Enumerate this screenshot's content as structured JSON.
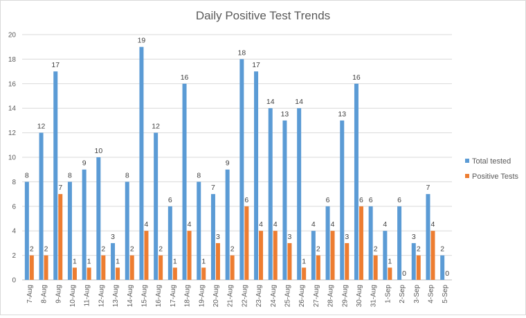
{
  "chart_data": {
    "type": "bar",
    "title": "Daily Positive Test Trends",
    "xlabel": "",
    "ylabel": "",
    "ylim": [
      0,
      20
    ],
    "yticks": [
      0,
      2,
      4,
      6,
      8,
      10,
      12,
      14,
      16,
      18,
      20
    ],
    "grid": true,
    "legend": "right",
    "categories": [
      "7-Aug",
      "8-Aug",
      "9-Aug",
      "10-Aug",
      "11-Aug",
      "12-Aug",
      "13-Aug",
      "14-Aug",
      "15-Aug",
      "16-Aug",
      "17-Aug",
      "18-Aug",
      "19-Aug",
      "20-Aug",
      "21-Aug",
      "22-Aug",
      "23-Aug",
      "24-Aug",
      "25-Aug",
      "26-Aug",
      "27-Aug",
      "28-Aug",
      "29-Aug",
      "30-Aug",
      "31-Aug",
      "1-Sep",
      "2-Sep",
      "3-Sep",
      "4-Sep",
      "5-Sep"
    ],
    "series": [
      {
        "name": "Total tested",
        "color": "#5b9bd5",
        "values": [
          8,
          12,
          17,
          8,
          9,
          10,
          3,
          8,
          19,
          12,
          6,
          16,
          8,
          7,
          9,
          18,
          17,
          14,
          13,
          14,
          4,
          6,
          13,
          16,
          6,
          4,
          6,
          3,
          7,
          2
        ]
      },
      {
        "name": "Positive Tests",
        "color": "#ed7d31",
        "values": [
          2,
          2,
          7,
          1,
          1,
          2,
          1,
          2,
          4,
          2,
          1,
          4,
          1,
          3,
          2,
          6,
          4,
          4,
          3,
          1,
          2,
          4,
          3,
          6,
          2,
          1,
          0,
          2,
          4,
          0
        ]
      }
    ]
  }
}
